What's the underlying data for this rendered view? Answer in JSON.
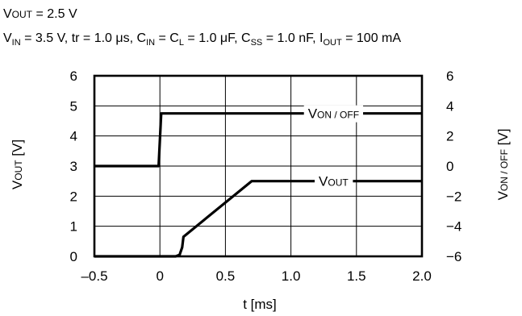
{
  "header": {
    "line1": {
      "v": "V",
      "out": "OUT",
      "rest": " = 2.5 V"
    },
    "line2": {
      "vin_v": "V",
      "vin_sub": "IN",
      "vin_rest": " = 3.5 V, tr = 1.0 μs, ",
      "cin_c": "C",
      "cin_sub": "IN",
      "cin_eq": " = ",
      "cl_c": "C",
      "cl_sub": "L",
      "cl_rest": " = 1.0 μF, ",
      "css_c": "C",
      "css_sub": "SS",
      "css_rest": " = 1.0 nF, ",
      "iout_i": "I",
      "iout_sub": "OUT",
      "iout_rest": " = 100 mA"
    }
  },
  "chart_data": {
    "type": "line",
    "title": "",
    "xlabel": "t [ms]",
    "ylabel_left": {
      "v": "V",
      "sc": "OUT",
      "unit": " [V]"
    },
    "ylabel_right": {
      "v": "V",
      "sc": "ON / OFF",
      "unit": " [V]"
    },
    "xlim": [
      -0.5,
      2.0
    ],
    "ylim_left": [
      0,
      6
    ],
    "ylim_right": [
      -6,
      6
    ],
    "x_ticks": [
      {
        "value": -0.5,
        "label": "–0.5"
      },
      {
        "value": 0,
        "label": "0"
      },
      {
        "value": 0.5,
        "label": "0.5"
      },
      {
        "value": 1.0,
        "label": "1.0"
      },
      {
        "value": 1.5,
        "label": "1.5"
      },
      {
        "value": 2.0,
        "label": "2.0"
      }
    ],
    "y_ticks_left": [
      {
        "value": 0,
        "label": "0"
      },
      {
        "value": 1,
        "label": "1"
      },
      {
        "value": 2,
        "label": "2"
      },
      {
        "value": 3,
        "label": "3"
      },
      {
        "value": 4,
        "label": "4"
      },
      {
        "value": 5,
        "label": "5"
      },
      {
        "value": 6,
        "label": "6"
      }
    ],
    "y_ticks_right": [
      {
        "value": -6,
        "label": "−6"
      },
      {
        "value": -4,
        "label": "−4"
      },
      {
        "value": -2,
        "label": "−2"
      },
      {
        "value": 0,
        "label": "0"
      },
      {
        "value": 2,
        "label": "2"
      },
      {
        "value": 4,
        "label": "4"
      },
      {
        "value": 6,
        "label": "6"
      }
    ],
    "grid": true,
    "series": [
      {
        "name": "V ON / OFF",
        "label_v": "V",
        "label_sc": "ON / OFF",
        "axis": "right",
        "x": [
          -0.5,
          -0.01,
          0.01,
          2.0
        ],
        "y": [
          0.0,
          0.0,
          3.5,
          3.5
        ]
      },
      {
        "name": "V OUT",
        "label_v": "V",
        "label_sc": "OUT",
        "axis": "left",
        "x": [
          -0.5,
          0.12,
          0.15,
          0.17,
          0.18,
          0.7,
          2.0
        ],
        "y": [
          0.0,
          0.0,
          0.05,
          0.3,
          0.65,
          2.5,
          2.5
        ]
      }
    ]
  }
}
